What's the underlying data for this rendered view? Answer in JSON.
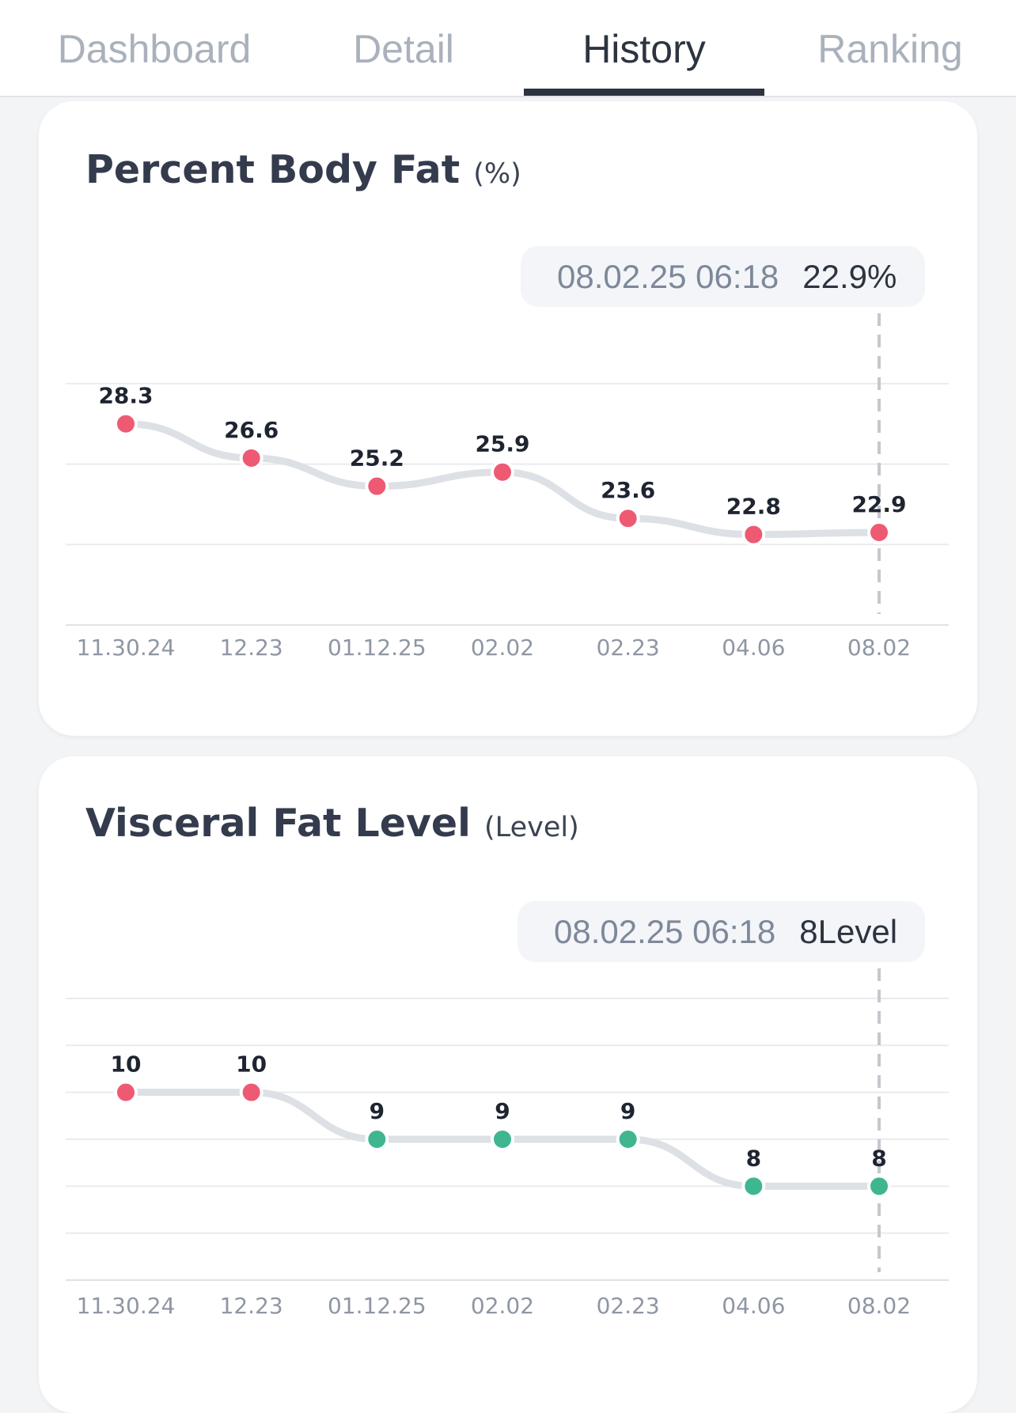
{
  "tabs": [
    {
      "label": "Dashboard",
      "active": false
    },
    {
      "label": "Detail",
      "active": false
    },
    {
      "label": "History",
      "active": true
    },
    {
      "label": "Ranking",
      "active": false
    }
  ],
  "colors": {
    "accent": "#2d3440",
    "point_high": "#ee5a72",
    "point_normal": "#3fb68f",
    "line": "#dde0e5",
    "grid": "#e9ebee"
  },
  "chart_data": [
    {
      "type": "line",
      "title": "Percent Body Fat",
      "unit": "(%)",
      "categories": [
        "11.30.24",
        "12.23",
        "01.12.25",
        "02.02",
        "02.23",
        "04.06",
        "08.02"
      ],
      "values": [
        28.3,
        26.6,
        25.2,
        25.9,
        23.6,
        22.8,
        22.9
      ],
      "value_labels": [
        "28.3",
        "26.6",
        "25.2",
        "25.9",
        "23.6",
        "22.8",
        "22.9"
      ],
      "point_status": [
        "high",
        "high",
        "high",
        "high",
        "high",
        "high",
        "high"
      ],
      "ylim": [
        18.3,
        32.3
      ],
      "gridlines": [
        18.3,
        22.3,
        26.3,
        30.3
      ],
      "tooltip": {
        "date": "08.02.25 06:18",
        "value": "22.9%"
      },
      "selected_index": 6
    },
    {
      "type": "line",
      "title": "Visceral Fat Level",
      "unit": "(Level)",
      "categories": [
        "11.30.24",
        "12.23",
        "01.12.25",
        "02.02",
        "02.23",
        "04.06",
        "08.02"
      ],
      "values": [
        10,
        10,
        9,
        9,
        9,
        8,
        8
      ],
      "value_labels": [
        "10",
        "10",
        "9",
        "9",
        "9",
        "8",
        "8"
      ],
      "point_status": [
        "high",
        "high",
        "normal",
        "normal",
        "normal",
        "normal",
        "normal"
      ],
      "ylim": [
        6,
        12
      ],
      "gridlines": [
        6,
        7,
        8,
        9,
        10,
        11,
        12
      ],
      "tooltip": {
        "date": "08.02.25 06:18",
        "value": "8Level"
      },
      "selected_index": 6
    }
  ]
}
